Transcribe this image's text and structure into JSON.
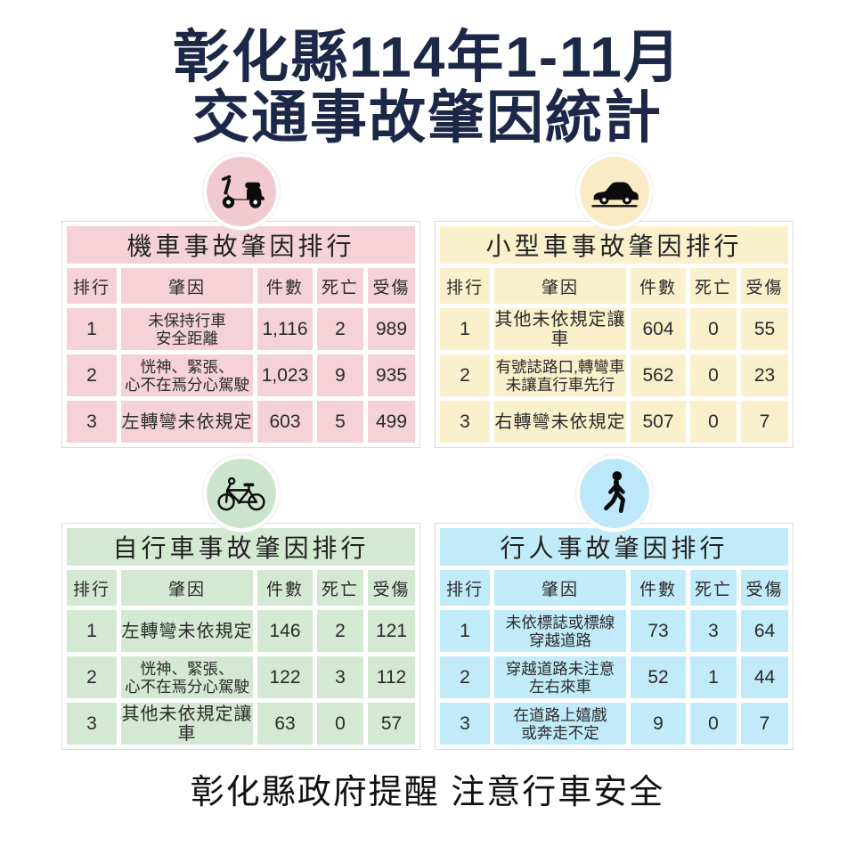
{
  "title": {
    "line1": "彰化縣114年1-11月",
    "line2": "交通事故肇因統計",
    "color": "#1c2847"
  },
  "footer": {
    "text": "彰化縣政府提醒 注意行車安全"
  },
  "columns": [
    "排行",
    "肇因",
    "件數",
    "死亡",
    "受傷"
  ],
  "tables": [
    {
      "id": "motorcycle",
      "title": "機車事故肇因排行",
      "icon": "scooter-icon",
      "theme": {
        "cell": "#f4d2d8",
        "circle": "#f1c9d0"
      },
      "rows": [
        {
          "rank": "1",
          "cause_lines": [
            "未保持行車",
            "安全距離"
          ],
          "cases": "1,116",
          "deaths": "2",
          "injuries": "989"
        },
        {
          "rank": "2",
          "cause_lines": [
            "恍神、緊張、",
            "心不在焉分心駕駛"
          ],
          "cases": "1,023",
          "deaths": "9",
          "injuries": "935"
        },
        {
          "rank": "3",
          "cause_lines": [
            "左轉彎未依規定"
          ],
          "cases": "603",
          "deaths": "5",
          "injuries": "499"
        }
      ]
    },
    {
      "id": "small-car",
      "title": "小型車事故肇因排行",
      "icon": "car-icon",
      "theme": {
        "cell": "#fbf0cc",
        "circle": "#f9ecc4"
      },
      "rows": [
        {
          "rank": "1",
          "cause_lines": [
            "其他未依規定讓車"
          ],
          "cases": "604",
          "deaths": "0",
          "injuries": "55"
        },
        {
          "rank": "2",
          "cause_lines": [
            "有號誌路口,轉彎車",
            "未讓直行車先行"
          ],
          "cases": "562",
          "deaths": "0",
          "injuries": "23"
        },
        {
          "rank": "3",
          "cause_lines": [
            "右轉彎未依規定"
          ],
          "cases": "507",
          "deaths": "0",
          "injuries": "7"
        }
      ]
    },
    {
      "id": "bicycle",
      "title": "自行車事故肇因排行",
      "icon": "bicycle-icon",
      "theme": {
        "cell": "#d4e9d2",
        "circle": "#cbe5cd"
      },
      "rows": [
        {
          "rank": "1",
          "cause_lines": [
            "左轉彎未依規定"
          ],
          "cases": "146",
          "deaths": "2",
          "injuries": "121"
        },
        {
          "rank": "2",
          "cause_lines": [
            "恍神、緊張、",
            "心不在焉分心駕駛"
          ],
          "cases": "122",
          "deaths": "3",
          "injuries": "112"
        },
        {
          "rank": "3",
          "cause_lines": [
            "其他未依規定讓車"
          ],
          "cases": "63",
          "deaths": "0",
          "injuries": "57"
        }
      ]
    },
    {
      "id": "pedestrian",
      "title": "行人事故肇因排行",
      "icon": "pedestrian-icon",
      "theme": {
        "cell": "#c2ebfa",
        "circle": "#bce8f9"
      },
      "rows": [
        {
          "rank": "1",
          "cause_lines": [
            "未依標誌或標線",
            "穿越道路"
          ],
          "cases": "73",
          "deaths": "3",
          "injuries": "64"
        },
        {
          "rank": "2",
          "cause_lines": [
            "穿越道路未注意",
            "左右來車"
          ],
          "cases": "52",
          "deaths": "1",
          "injuries": "44"
        },
        {
          "rank": "3",
          "cause_lines": [
            "在道路上嬉戲",
            "或奔走不定"
          ],
          "cases": "9",
          "deaths": "0",
          "injuries": "7"
        }
      ]
    }
  ],
  "chart_data": [
    {
      "type": "table",
      "title": "機車事故肇因排行",
      "columns": [
        "排行",
        "肇因",
        "件數",
        "死亡",
        "受傷"
      ],
      "rows": [
        [
          1,
          "未保持行車安全距離",
          1116,
          2,
          989
        ],
        [
          2,
          "恍神、緊張、心不在焉分心駕駛",
          1023,
          9,
          935
        ],
        [
          3,
          "左轉彎未依規定",
          603,
          5,
          499
        ]
      ]
    },
    {
      "type": "table",
      "title": "小型車事故肇因排行",
      "columns": [
        "排行",
        "肇因",
        "件數",
        "死亡",
        "受傷"
      ],
      "rows": [
        [
          1,
          "其他未依規定讓車",
          604,
          0,
          55
        ],
        [
          2,
          "有號誌路口,轉彎車未讓直行車先行",
          562,
          0,
          23
        ],
        [
          3,
          "右轉彎未依規定",
          507,
          0,
          7
        ]
      ]
    },
    {
      "type": "table",
      "title": "自行車事故肇因排行",
      "columns": [
        "排行",
        "肇因",
        "件數",
        "死亡",
        "受傷"
      ],
      "rows": [
        [
          1,
          "左轉彎未依規定",
          146,
          2,
          121
        ],
        [
          2,
          "恍神、緊張、心不在焉分心駕駛",
          122,
          3,
          112
        ],
        [
          3,
          "其他未依規定讓車",
          63,
          0,
          57
        ]
      ]
    },
    {
      "type": "table",
      "title": "行人事故肇因排行",
      "columns": [
        "排行",
        "肇因",
        "件數",
        "死亡",
        "受傷"
      ],
      "rows": [
        [
          1,
          "未依標誌或標線穿越道路",
          73,
          3,
          64
        ],
        [
          2,
          "穿越道路未注意左右來車",
          52,
          1,
          44
        ],
        [
          3,
          "在道路上嬉戲或奔走不定",
          9,
          0,
          7
        ]
      ]
    }
  ]
}
